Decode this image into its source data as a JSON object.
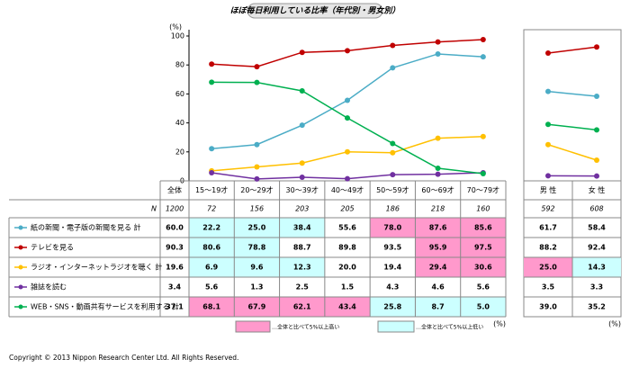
{
  "chart_data": {
    "type": "line",
    "title": "ほぼ毎日利用している比率（年代別・男女別）",
    "y_unit": "(%)",
    "ylim": [
      0,
      100
    ],
    "yticks": [
      0,
      20,
      40,
      60,
      80,
      100
    ],
    "total_header": "全体",
    "categories": [
      "15～19才",
      "20～29才",
      "30～39才",
      "40～49才",
      "50～59才",
      "60～69才",
      "70～79才"
    ],
    "gender_categories": [
      "男 性",
      "女 性"
    ],
    "n_label": "N",
    "n_total": 1200,
    "n_values": [
      72,
      156,
      203,
      205,
      186,
      218,
      160
    ],
    "n_gender": [
      592,
      608
    ],
    "highlight_colors": {
      "high": "#ff99cc",
      "low": "#ccffff"
    },
    "series": [
      {
        "name": "紙の新聞・電子版の新聞を見る 計",
        "color": "#4bacc6",
        "total": 60.0,
        "total_label": "60.0",
        "values": [
          22.2,
          25.0,
          38.4,
          55.6,
          78.0,
          87.6,
          85.6
        ],
        "value_labels": [
          "22.2",
          "25.0",
          "38.4",
          "55.6",
          "78.0",
          "87.6",
          "85.6"
        ],
        "highlight": [
          "low",
          "low",
          "low",
          null,
          "high",
          "high",
          "high"
        ],
        "gender": [
          61.7,
          58.4
        ],
        "gender_labels": [
          "61.7",
          "58.4"
        ],
        "gender_highlight": [
          null,
          null
        ]
      },
      {
        "name": "テレビを見る",
        "color": "#c00000",
        "total": 90.3,
        "total_label": "90.3",
        "values": [
          80.6,
          78.8,
          88.7,
          89.8,
          93.5,
          95.9,
          97.5
        ],
        "value_labels": [
          "80.6",
          "78.8",
          "88.7",
          "89.8",
          "93.5",
          "95.9",
          "97.5"
        ],
        "highlight": [
          "low",
          "low",
          null,
          null,
          null,
          "high",
          "high"
        ],
        "gender": [
          88.2,
          92.4
        ],
        "gender_labels": [
          "88.2",
          "92.4"
        ],
        "gender_highlight": [
          null,
          null
        ]
      },
      {
        "name": "ラジオ・インターネットラジオを聴く 計",
        "color": "#ffc000",
        "total": 19.6,
        "total_label": "19.6",
        "values": [
          6.9,
          9.6,
          12.3,
          20.0,
          19.4,
          29.4,
          30.6
        ],
        "value_labels": [
          "6.9",
          "9.6",
          "12.3",
          "20.0",
          "19.4",
          "29.4",
          "30.6"
        ],
        "highlight": [
          "low",
          "low",
          "low",
          null,
          null,
          "high",
          "high"
        ],
        "gender": [
          25.0,
          14.3
        ],
        "gender_labels": [
          "25.0",
          "14.3"
        ],
        "gender_highlight": [
          "high",
          "low"
        ]
      },
      {
        "name": "雑誌を読む",
        "color": "#7030a0",
        "total": 3.4,
        "total_label": "3.4",
        "values": [
          5.6,
          1.3,
          2.5,
          1.5,
          4.3,
          4.6,
          5.6
        ],
        "value_labels": [
          "5.6",
          "1.3",
          "2.5",
          "1.5",
          "4.3",
          "4.6",
          "5.6"
        ],
        "highlight": [
          null,
          null,
          null,
          null,
          null,
          null,
          null
        ],
        "gender": [
          3.5,
          3.3
        ],
        "gender_labels": [
          "3.5",
          "3.3"
        ],
        "gender_highlight": [
          null,
          null
        ]
      },
      {
        "name": "WEB・SNS・動画共有サービスを利用する 計",
        "color": "#00b050",
        "total": 37.1,
        "total_label": "37.1",
        "values": [
          68.1,
          67.9,
          62.1,
          43.4,
          25.8,
          8.7,
          5.0
        ],
        "value_labels": [
          "68.1",
          "67.9",
          "62.1",
          "43.4",
          "25.8",
          "8.7",
          "5.0"
        ],
        "highlight": [
          "high",
          "high",
          "high",
          "high",
          "low",
          "low",
          "low"
        ],
        "gender": [
          39.0,
          35.2
        ],
        "gender_labels": [
          "39.0",
          "35.2"
        ],
        "gender_highlight": [
          null,
          null
        ]
      }
    ],
    "table_unit": "(%)",
    "legend_high": "…全体と比べて5%以上高い",
    "legend_low": "…全体と比べて5%以上低い",
    "copyright": "Copyright ©  2013 Nippon Research Center Ltd. All Rights Reserved."
  }
}
